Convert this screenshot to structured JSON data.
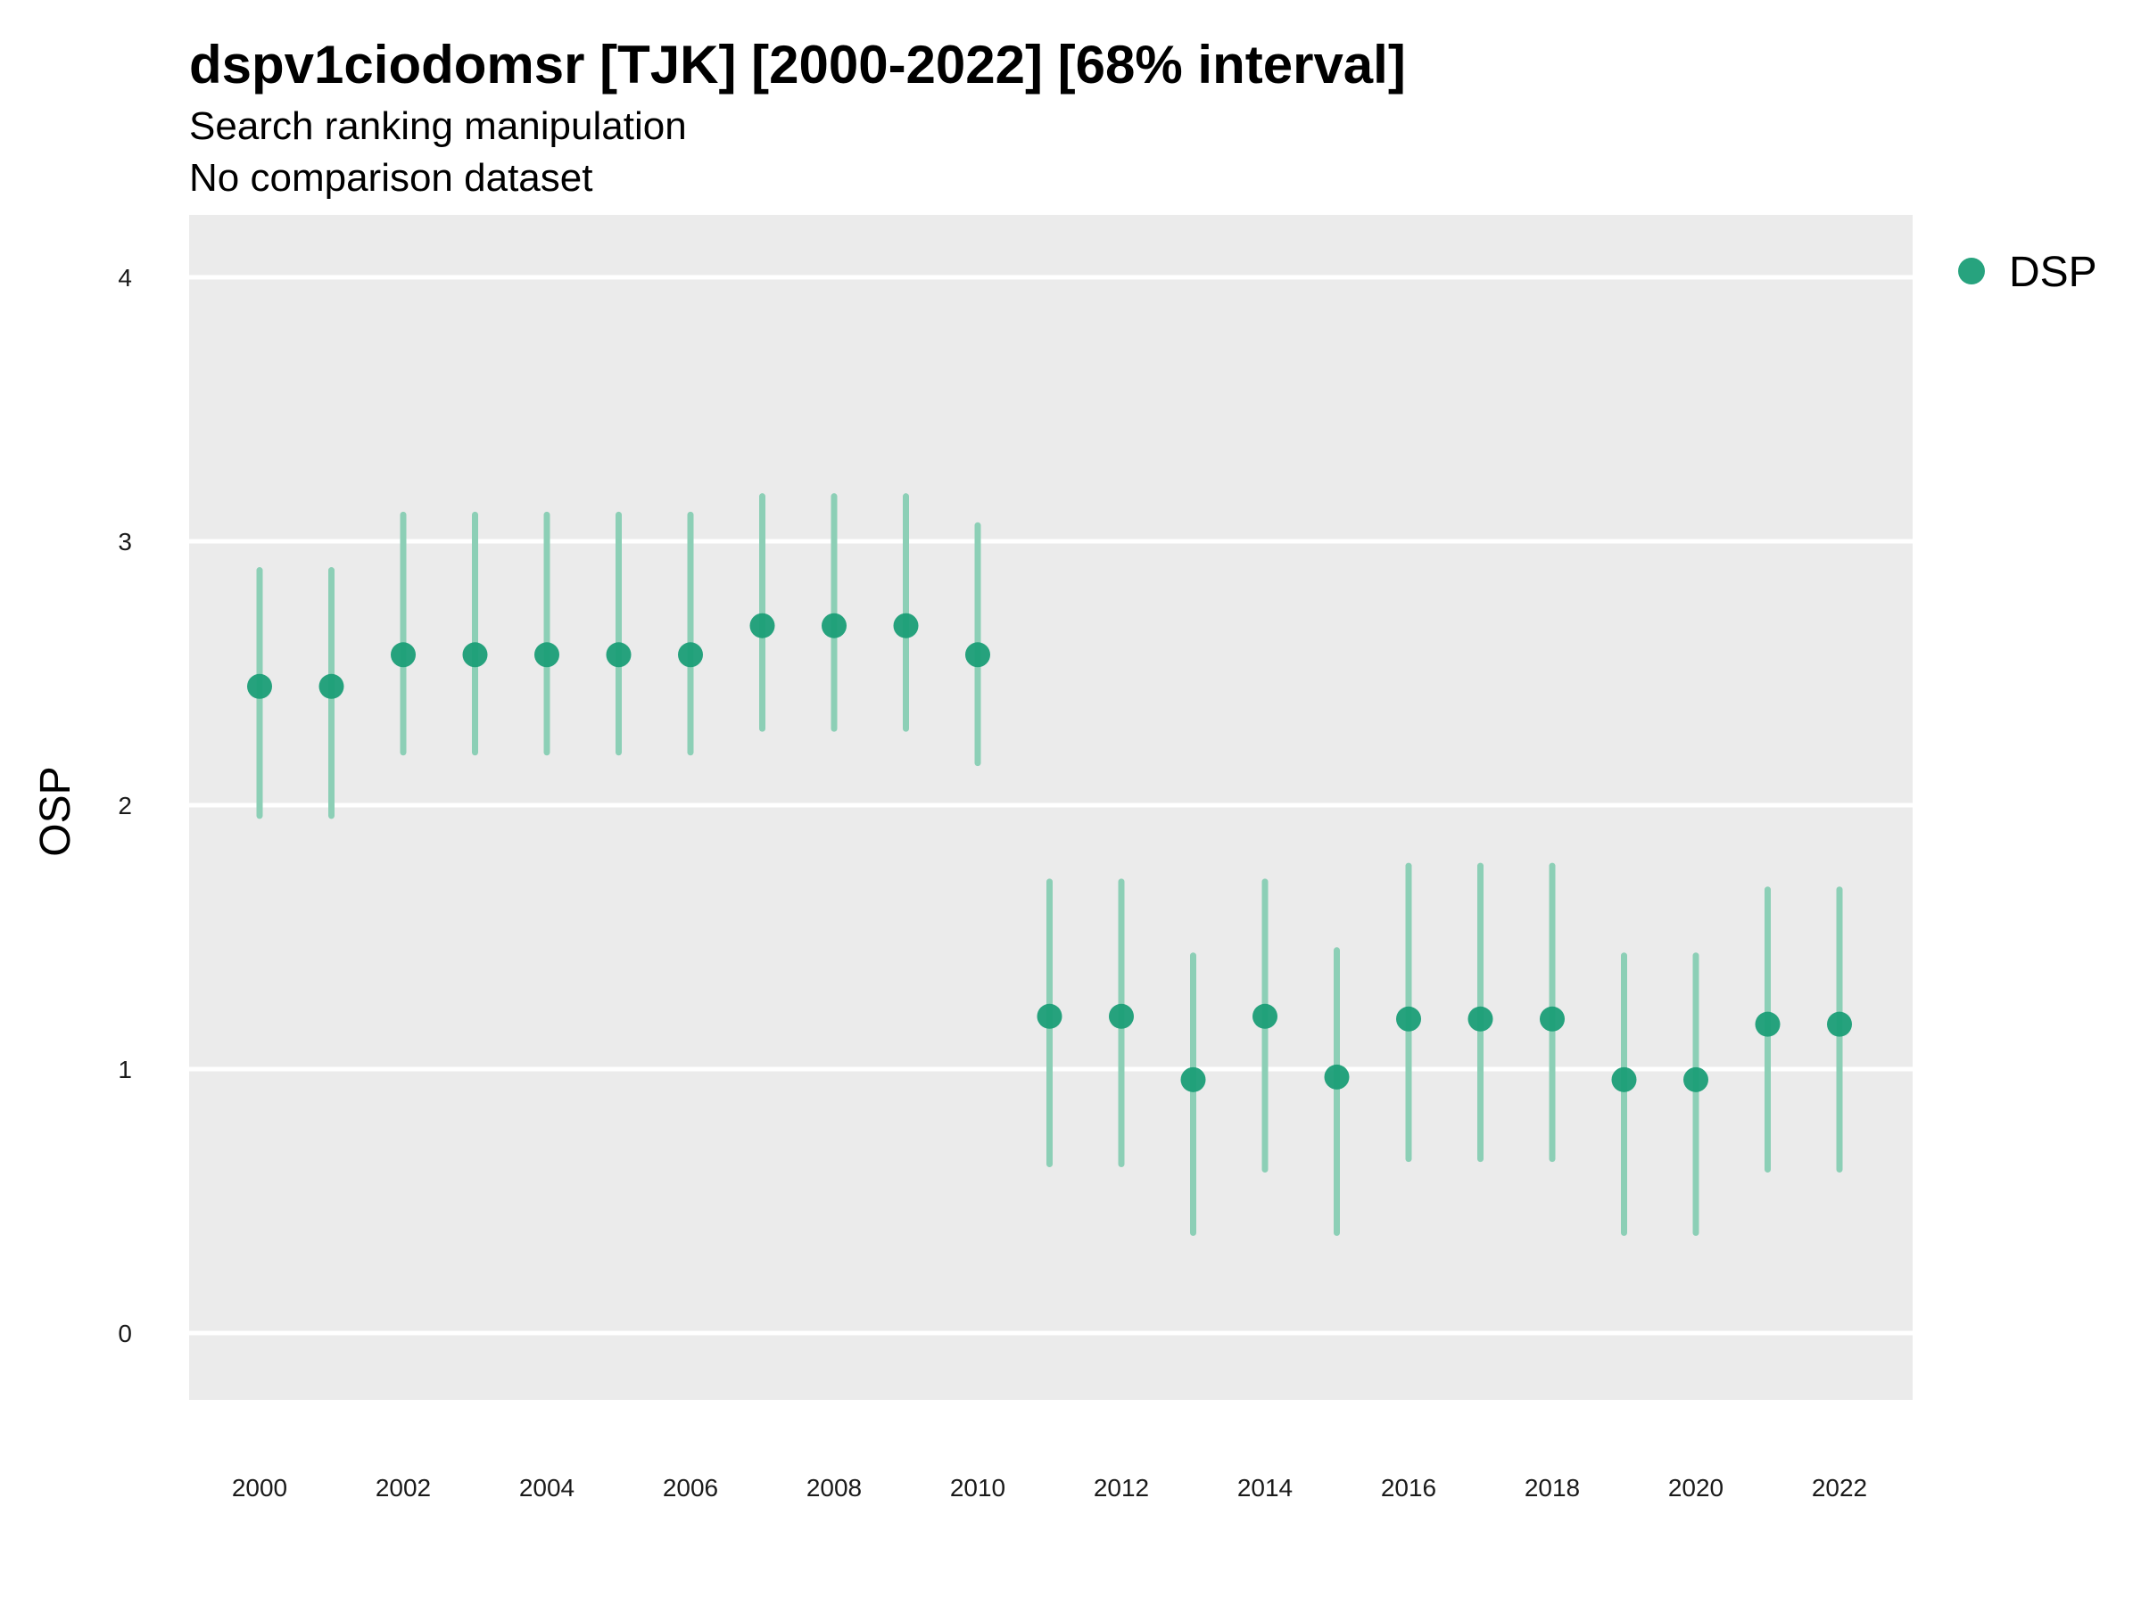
{
  "chart_data": {
    "type": "scatter",
    "title": "dspv1ciodomsr [TJK] [2000-2022] [68% interval]",
    "subtitle": "Search ranking manipulation",
    "caption": "No comparison dataset",
    "xlabel": "",
    "ylabel": "OSP",
    "xlim": [
      1999,
      2023
    ],
    "ylim": [
      -0.25,
      4.25
    ],
    "x_ticks": [
      2000,
      2002,
      2004,
      2006,
      2008,
      2010,
      2012,
      2014,
      2016,
      2018,
      2020,
      2022
    ],
    "y_ticks": [
      0,
      1,
      2,
      3,
      4
    ],
    "grid": true,
    "panel_background": "#ebebeb",
    "grid_color": "#ffffff",
    "legend_position": "right",
    "series": [
      {
        "name": "DSP",
        "color": "#1b9e77",
        "interval_color": "#8ccfb6",
        "x": [
          2000,
          2001,
          2002,
          2003,
          2004,
          2005,
          2006,
          2007,
          2008,
          2009,
          2010,
          2011,
          2012,
          2013,
          2014,
          2015,
          2016,
          2017,
          2018,
          2019,
          2020,
          2021,
          2022
        ],
        "y": [
          2.45,
          2.45,
          2.57,
          2.57,
          2.57,
          2.57,
          2.57,
          2.68,
          2.68,
          2.68,
          2.57,
          1.2,
          1.2,
          0.96,
          1.2,
          0.97,
          1.19,
          1.19,
          1.19,
          0.96,
          0.96,
          1.17,
          1.17
        ],
        "lower": [
          1.96,
          1.96,
          2.2,
          2.2,
          2.2,
          2.2,
          2.2,
          2.29,
          2.29,
          2.29,
          2.16,
          0.64,
          0.64,
          0.38,
          0.62,
          0.38,
          0.66,
          0.66,
          0.66,
          0.38,
          0.38,
          0.62,
          0.62
        ],
        "upper": [
          2.89,
          2.89,
          3.1,
          3.1,
          3.1,
          3.1,
          3.1,
          3.17,
          3.17,
          3.17,
          3.06,
          1.71,
          1.71,
          1.43,
          1.71,
          1.45,
          1.77,
          1.77,
          1.77,
          1.43,
          1.43,
          1.68,
          1.68
        ]
      }
    ]
  }
}
